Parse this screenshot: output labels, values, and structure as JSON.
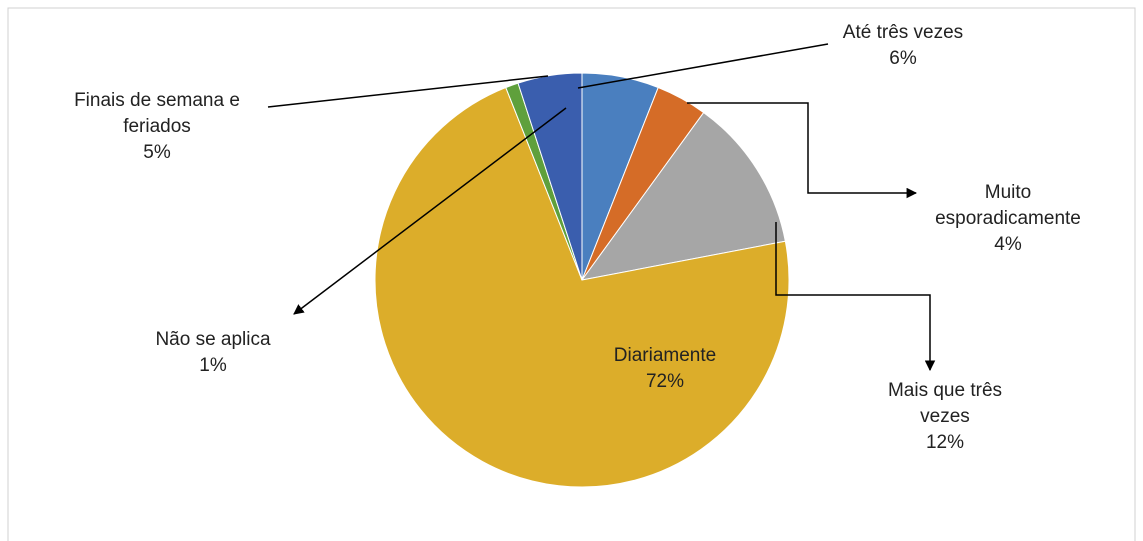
{
  "chart_data": {
    "type": "pie",
    "categories": [
      "Até três vezes",
      "Muito esporadicamente",
      "Mais que três vezes",
      "Diariamente",
      "Não se aplica",
      "Finais de semana e feriados"
    ],
    "values": [
      6,
      4,
      12,
      72,
      1,
      5
    ],
    "value_labels": [
      "6%",
      "4%",
      "12%",
      "72%",
      "1%",
      "5%"
    ],
    "colors": [
      "#4a7fbf",
      "#d56c27",
      "#a6a6a6",
      "#dcad2a",
      "#5fa03c",
      "#3a5eae"
    ]
  }
}
